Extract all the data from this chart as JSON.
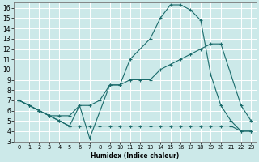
{
  "xlabel": "Humidex (Indice chaleur)",
  "xlim": [
    -0.5,
    23.5
  ],
  "ylim": [
    3,
    16.5
  ],
  "xticks": [
    0,
    1,
    2,
    3,
    4,
    5,
    6,
    7,
    8,
    9,
    10,
    11,
    12,
    13,
    14,
    15,
    16,
    17,
    18,
    19,
    20,
    21,
    22,
    23
  ],
  "yticks": [
    3,
    4,
    5,
    6,
    7,
    8,
    9,
    10,
    11,
    12,
    13,
    14,
    15,
    16
  ],
  "bg_color": "#cce9e9",
  "line_color": "#1a6b6b",
  "grid_color": "#ffffff",
  "line1_x": [
    0,
    1,
    2,
    3,
    4,
    5,
    6,
    7,
    9,
    10,
    11,
    13,
    14,
    15,
    16,
    17,
    18,
    19,
    20,
    21,
    22,
    23
  ],
  "line1_y": [
    7,
    6.5,
    6,
    5.5,
    5,
    4.5,
    6.5,
    3.3,
    8.5,
    8.5,
    11,
    13,
    15,
    16.3,
    16.3,
    15.8,
    14.8,
    9.5,
    6.5,
    5.0,
    4.0,
    4.0
  ],
  "line2_x": [
    0,
    1,
    2,
    3,
    4,
    5,
    6,
    7,
    8,
    9,
    10,
    11,
    12,
    13,
    14,
    15,
    16,
    17,
    18,
    19,
    20,
    21,
    22,
    23
  ],
  "line2_y": [
    7,
    6.5,
    6.0,
    5.5,
    5.0,
    4.5,
    4.5,
    4.5,
    4.5,
    4.5,
    4.5,
    4.5,
    4.5,
    4.5,
    4.5,
    4.5,
    4.5,
    4.5,
    4.5,
    4.5,
    4.5,
    4.5,
    4.0,
    4.0
  ],
  "line3_x": [
    0,
    1,
    2,
    3,
    4,
    5,
    6,
    7,
    8,
    9,
    10,
    11,
    12,
    13,
    14,
    15,
    16,
    17,
    18,
    19,
    20,
    21,
    22,
    23
  ],
  "line3_y": [
    7,
    6.5,
    6.0,
    5.5,
    5.5,
    5.5,
    6.5,
    6.5,
    7.0,
    8.5,
    8.5,
    9.0,
    9.0,
    9.0,
    10.0,
    10.5,
    11.0,
    11.5,
    12.0,
    12.5,
    12.5,
    9.5,
    6.5,
    5.0
  ]
}
